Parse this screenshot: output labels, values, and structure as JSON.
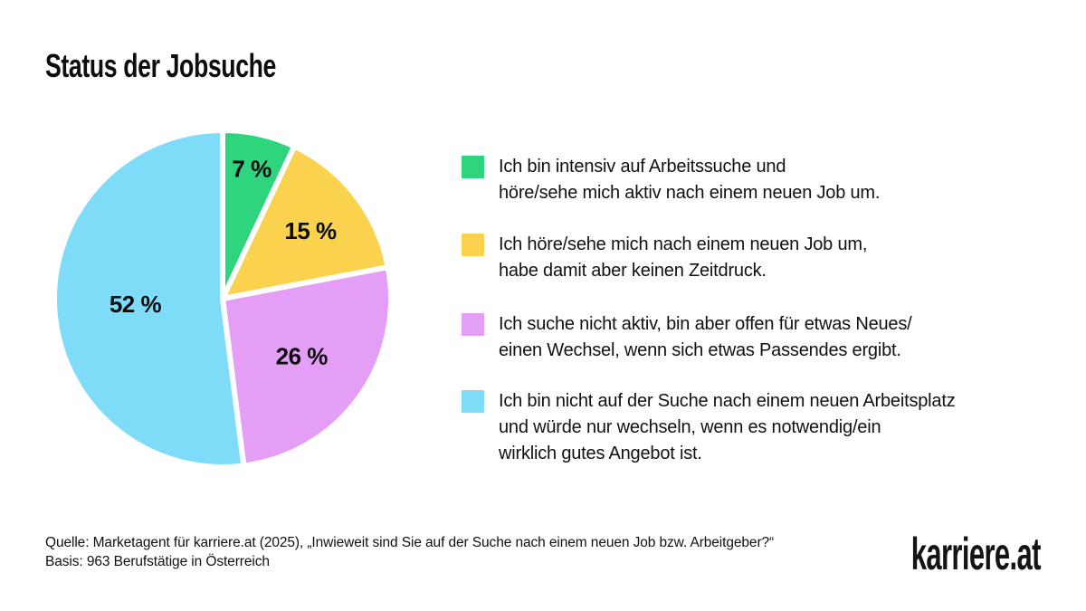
{
  "title": "Status der Jobsuche",
  "chart_data": {
    "type": "pie",
    "title": "Status der Jobsuche",
    "unit": "%",
    "start_angle_deg": 0,
    "direction": "clockwise",
    "legend_position": "right",
    "total": 100,
    "slices": [
      {
        "name": "intensiv-auf-arbeitssuche",
        "value": 7,
        "display": "7 %",
        "color": "#2ED47E",
        "label_r": 0.79,
        "label": "Ich bin intensiv auf Arbeitssuche und höre/sehe mich aktiv nach einem neuen Job um."
      },
      {
        "name": "umhoeren-ohne-zeitdruck",
        "value": 15,
        "display": "15 %",
        "color": "#FBD24E",
        "label_r": 0.66,
        "label": "Ich höre/sehe mich nach einem neuen Job um, habe damit aber keinen Zeitdruck."
      },
      {
        "name": "nicht-aktiv-aber-offen",
        "value": 26,
        "display": "26 %",
        "color": "#E59EF5",
        "label_r": 0.58,
        "label": "Ich suche nicht aktiv, bin aber offen für etwas Neues/einen Wechsel, wenn sich etwas Passendes ergibt."
      },
      {
        "name": "nicht-auf-der-suche",
        "value": 52,
        "display": "52 %",
        "color": "#7EDCF8",
        "label_r": 0.52,
        "label": "Ich bin nicht auf der Suche nach einem neuen Arbeitsplatz und würde nur wechseln, wenn es notwendig/ein wirklich gutes Angebot ist."
      }
    ]
  },
  "legend": {
    "items": [
      {
        "color": "#2ED47E",
        "text": "Ich bin intensiv auf Arbeitssuche und\nhöre/sehe mich aktiv nach einem neuen Job um."
      },
      {
        "color": "#FBD24E",
        "text": "Ich höre/sehe mich nach einem neuen Job um,\nhabe damit aber keinen Zeitdruck."
      },
      {
        "color": "#E59EF5",
        "text": "Ich suche nicht aktiv, bin aber offen für etwas Neues/\neinen Wechsel, wenn sich etwas Passendes ergibt."
      },
      {
        "color": "#7EDCF8",
        "text": "Ich bin nicht auf der Suche nach einem neuen Arbeitsplatz\nund würde nur wechseln, wenn es notwendig/ein\nwirklich gutes Angebot ist."
      }
    ]
  },
  "footer": {
    "source": "Quelle: Marketagent für karriere.at (2025), „Inwieweit sind Sie auf der Suche nach einem neuen Job bzw. Arbeitgeber?“",
    "basis": "Basis: 963 Berufstätige in Österreich"
  },
  "logo": {
    "text": "karriere.at"
  }
}
